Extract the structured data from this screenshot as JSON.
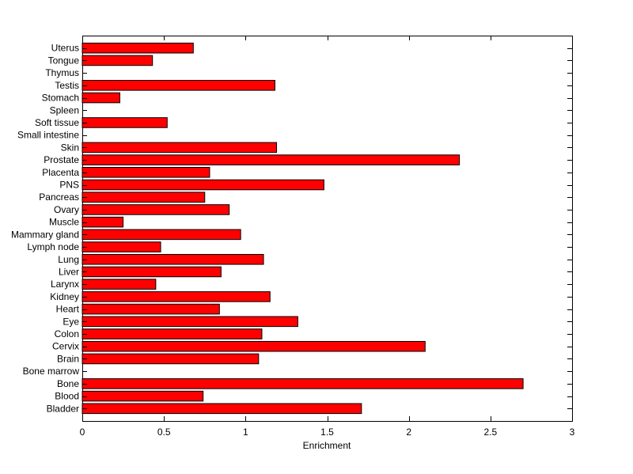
{
  "chart_data": {
    "type": "bar",
    "orientation": "horizontal",
    "title": "",
    "xlabel": "Enrichment",
    "ylabel": "",
    "xlim": [
      0,
      3
    ],
    "xticks": [
      0,
      0.5,
      1,
      1.5,
      2,
      2.5,
      3
    ],
    "xtick_labels": [
      "0",
      "0.5",
      "1",
      "1.5",
      "2",
      "2.5",
      "3"
    ],
    "grid": false,
    "legend": "none",
    "bar_color": "#ff0000",
    "bar_edge_color": "#000000",
    "categories": [
      "Bladder",
      "Blood",
      "Bone",
      "Bone marrow",
      "Brain",
      "Cervix",
      "Colon",
      "Eye",
      "Heart",
      "Kidney",
      "Larynx",
      "Liver",
      "Lung",
      "Lymph node",
      "Mammary gland",
      "Muscle",
      "Ovary",
      "Pancreas",
      "PNS",
      "Placenta",
      "Prostate",
      "Skin",
      "Small intestine",
      "Soft tissue",
      "Spleen",
      "Stomach",
      "Testis",
      "Thymus",
      "Tongue",
      "Uterus"
    ],
    "values": [
      1.71,
      0.74,
      2.7,
      0,
      1.08,
      2.1,
      1.1,
      1.32,
      0.84,
      1.15,
      0.45,
      0.85,
      1.11,
      0.48,
      0.97,
      0.25,
      0.9,
      0.75,
      1.48,
      0.78,
      2.31,
      1.19,
      0,
      0.52,
      0,
      0.23,
      1.18,
      0,
      0.43,
      0.68
    ]
  }
}
